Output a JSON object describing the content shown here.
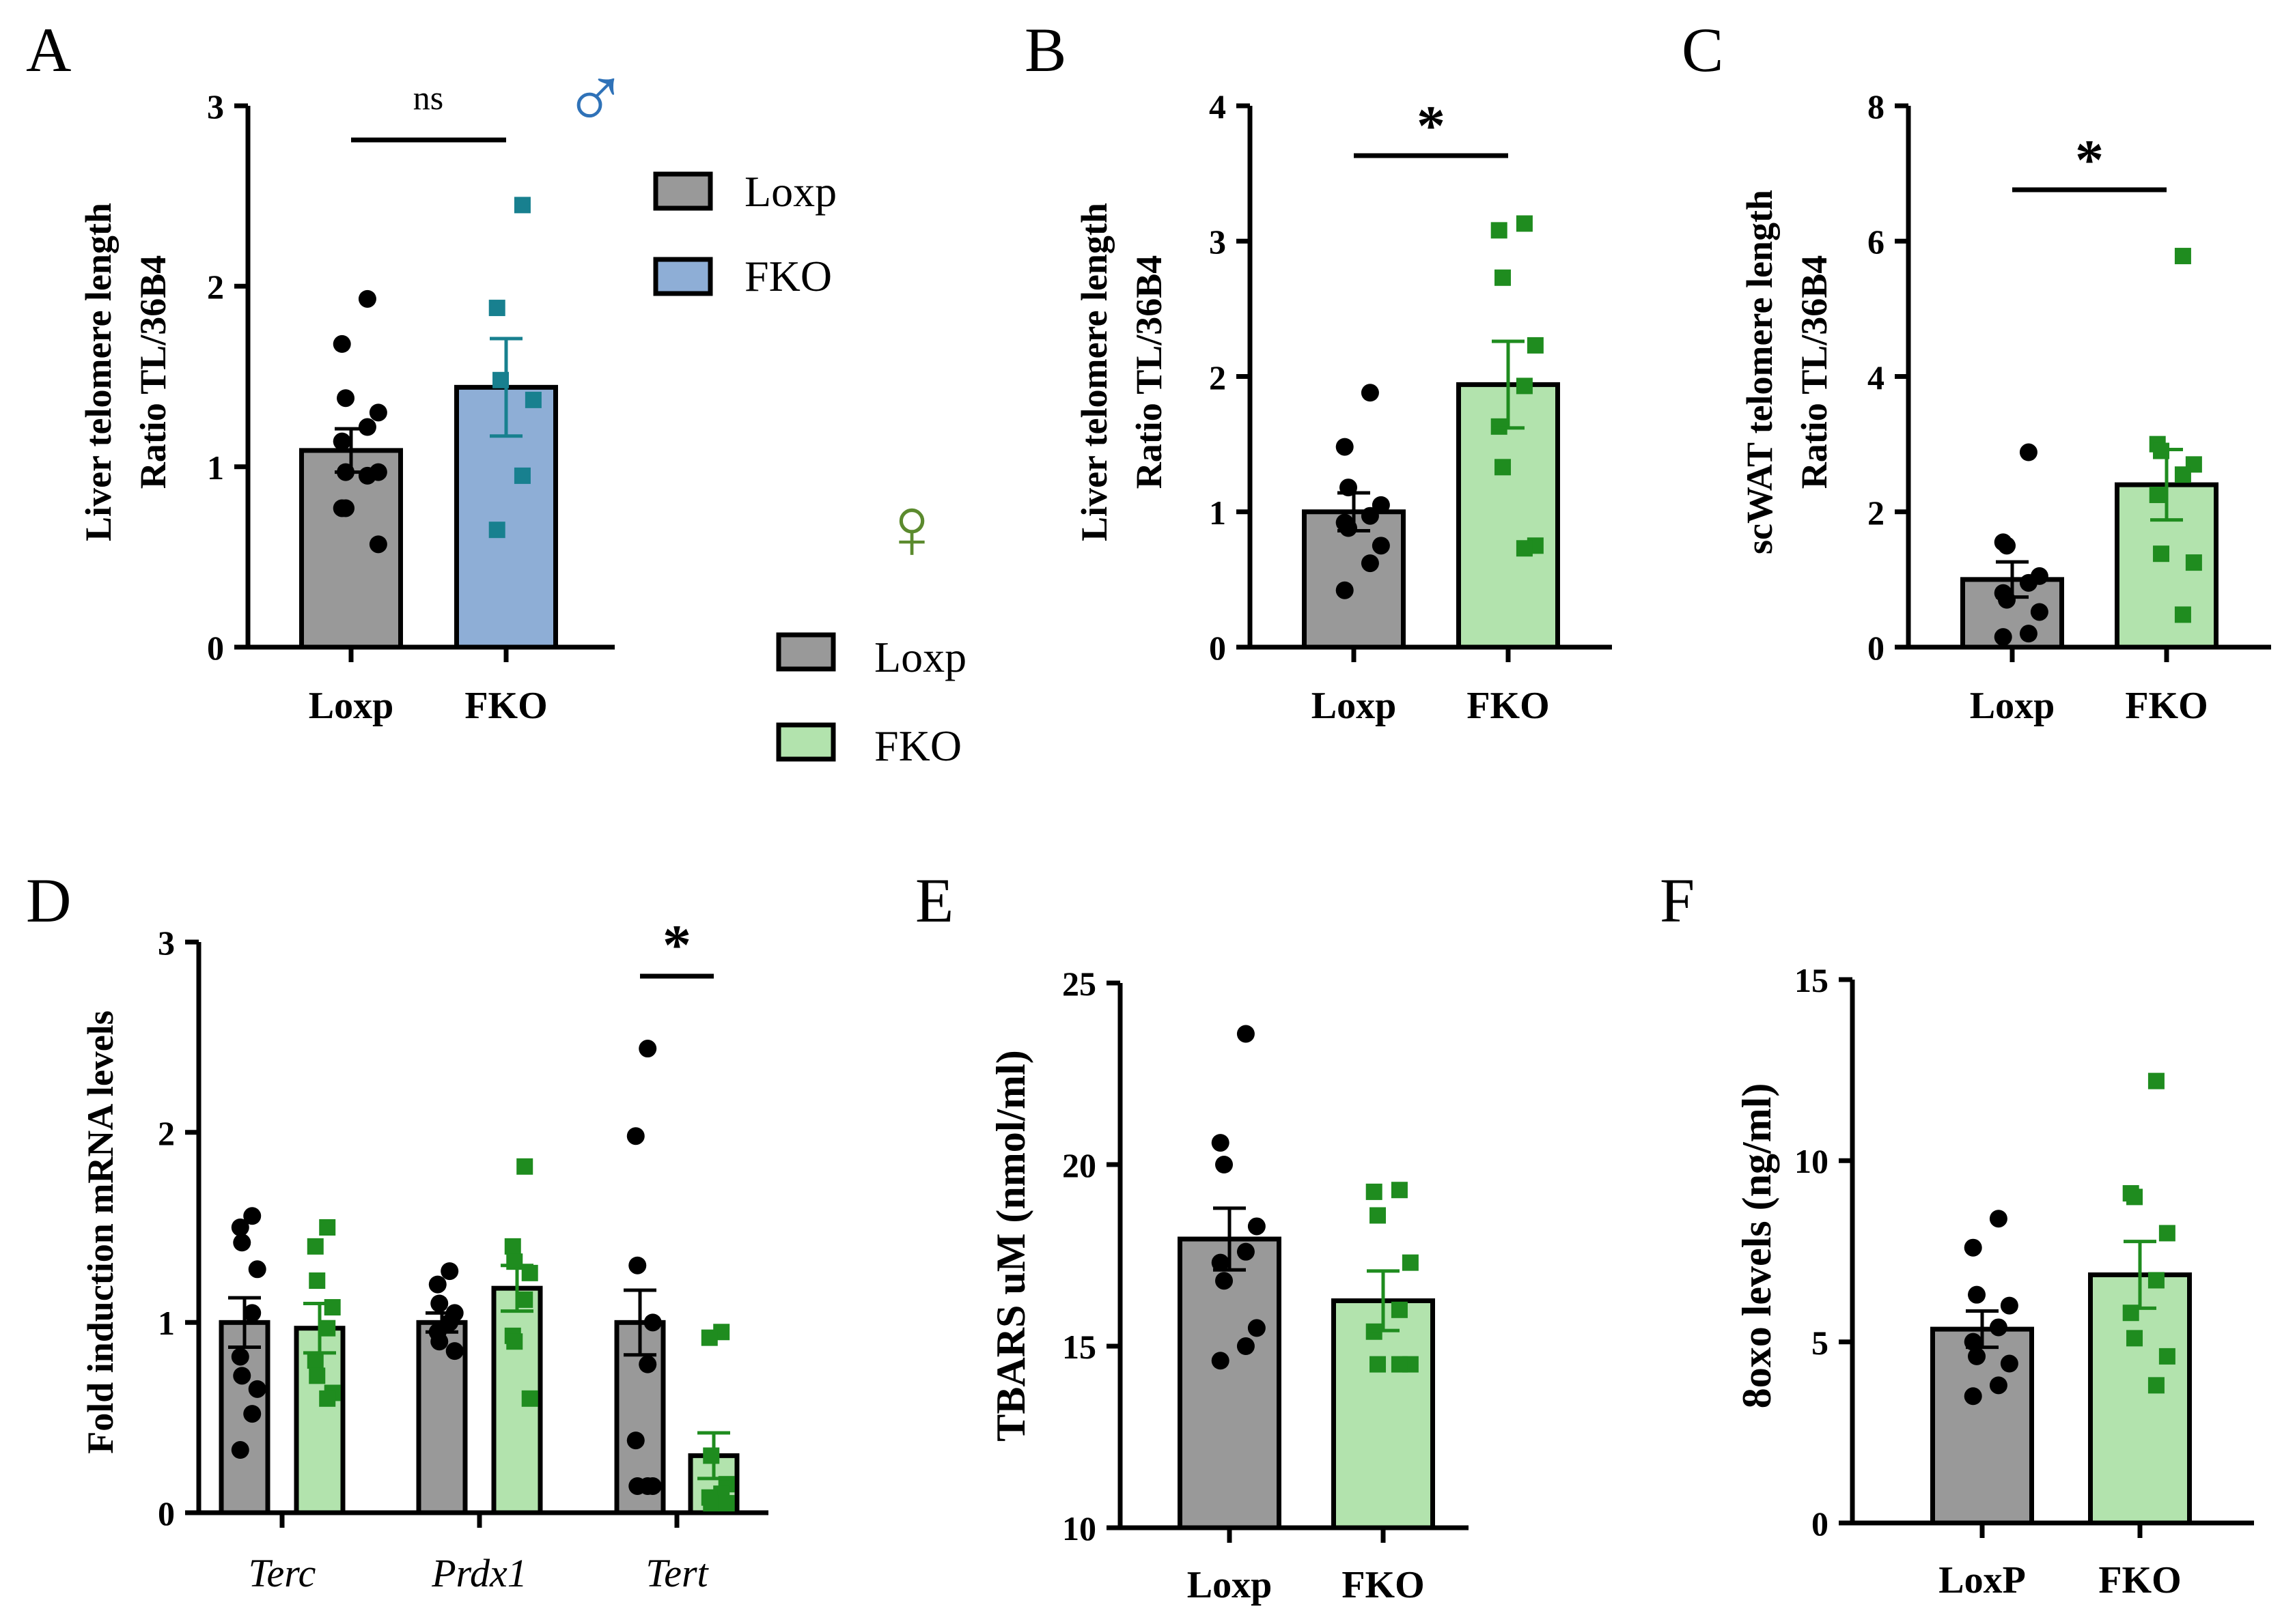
{
  "colors": {
    "loxp_fill": "#999999",
    "fko_male_fill": "#8eaed6",
    "fko_female_fill": "#b2e3ad",
    "male_points": "#18808f",
    "female_points": "#1f8c1f",
    "male_symbol": "#2f72b8",
    "female_symbol": "#5b8a2e"
  },
  "symbols": {
    "male": "♂",
    "female": "♀"
  },
  "legends": [
    {
      "id": "male",
      "items": [
        {
          "label": "Loxp",
          "color_key": "loxp_fill"
        },
        {
          "label": "FKO",
          "color_key": "fko_male_fill"
        }
      ]
    },
    {
      "id": "female",
      "items": [
        {
          "label": "Loxp",
          "color_key": "loxp_fill"
        },
        {
          "label": "FKO",
          "color_key": "fko_female_fill"
        }
      ]
    }
  ],
  "chart_data": [
    {
      "panel": "A",
      "type": "bar",
      "ylabel_lines": [
        "Liver telomere length",
        "Ratio TL/36B4"
      ],
      "ylim": [
        0,
        3
      ],
      "yticks": [
        "0",
        "1",
        "2",
        "3"
      ],
      "categories": [
        "Loxp",
        "FKO"
      ],
      "series": [
        {
          "name": "Loxp",
          "mean": 1.09,
          "sem": 0.12,
          "fill_key": "loxp_fill",
          "point_key": "loxp",
          "points": [
            1.93,
            1.68,
            1.38,
            1.3,
            1.22,
            1.14,
            0.97,
            0.97,
            0.95,
            0.77,
            0.77,
            0.57
          ]
        },
        {
          "name": "FKO",
          "mean": 1.44,
          "sem": 0.27,
          "fill_key": "fko_male_fill",
          "point_key": "male",
          "points": [
            2.45,
            1.88,
            1.48,
            1.37,
            0.95,
            0.65
          ]
        }
      ],
      "significance": "ns"
    },
    {
      "panel": "B",
      "type": "bar",
      "ylabel_lines": [
        "Liver telomere length",
        "Ratio TL/36B4"
      ],
      "ylim": [
        0,
        4
      ],
      "yticks": [
        "0",
        "1",
        "2",
        "3",
        "4"
      ],
      "categories": [
        "Loxp",
        "FKO"
      ],
      "series": [
        {
          "name": "Loxp",
          "mean": 1.0,
          "sem": 0.14,
          "fill_key": "loxp_fill",
          "point_key": "loxp",
          "points": [
            1.88,
            1.48,
            1.18,
            1.05,
            0.97,
            0.92,
            0.88,
            0.75,
            0.62,
            0.42
          ]
        },
        {
          "name": "FKO",
          "mean": 1.94,
          "sem": 0.32,
          "fill_key": "fko_female_fill",
          "point_key": "female",
          "points": [
            3.13,
            3.08,
            2.73,
            2.23,
            1.93,
            1.63,
            1.33,
            0.75,
            0.73
          ]
        }
      ],
      "significance": "*"
    },
    {
      "panel": "C",
      "type": "bar",
      "ylabel_lines": [
        "scWAT telomere length",
        "Ratio TL/36B4"
      ],
      "ylim": [
        0,
        8
      ],
      "yticks": [
        "0",
        "2",
        "4",
        "6",
        "8"
      ],
      "categories": [
        "Loxp",
        "FKO"
      ],
      "series": [
        {
          "name": "Loxp",
          "mean": 1.0,
          "sem": 0.26,
          "fill_key": "loxp_fill",
          "point_key": "loxp",
          "points": [
            2.88,
            1.55,
            1.5,
            1.05,
            0.95,
            0.8,
            0.7,
            0.52,
            0.2,
            0.15
          ]
        },
        {
          "name": "FKO",
          "mean": 2.4,
          "sem": 0.52,
          "fill_key": "fko_female_fill",
          "point_key": "female",
          "points": [
            5.78,
            3.0,
            2.9,
            2.7,
            2.55,
            2.25,
            1.38,
            1.25,
            0.48
          ]
        }
      ],
      "significance": "*"
    },
    {
      "panel": "D",
      "type": "bar",
      "ylabel_lines": [
        "Fold induction mRNA levels"
      ],
      "ylim": [
        0,
        3
      ],
      "yticks": [
        "0",
        "1",
        "2",
        "3"
      ],
      "categories": [
        "Terc",
        "Prdx1",
        "Tert"
      ],
      "series": [
        {
          "name": "Loxp",
          "fill_key": "loxp_fill",
          "point_key": "loxp",
          "means": [
            1.0,
            1.0,
            1.0
          ],
          "sems": [
            0.13,
            0.05,
            0.17
          ],
          "points": [
            [
              1.56,
              1.5,
              1.42,
              1.28,
              1.05,
              0.82,
              0.72,
              0.65,
              0.52,
              0.33
            ],
            [
              1.27,
              1.2,
              1.1,
              1.05,
              1.0,
              0.95,
              0.9,
              0.85
            ],
            [
              2.44,
              1.98,
              1.3,
              1.0,
              0.78,
              0.38,
              0.14,
              0.14,
              0.14
            ]
          ]
        },
        {
          "name": "FKO",
          "fill_key": "fko_female_fill",
          "point_key": "female",
          "means": [
            0.97,
            1.18,
            0.3
          ],
          "sems": [
            0.13,
            0.12,
            0.12
          ],
          "points": [
            [
              1.5,
              1.4,
              1.22,
              1.08,
              0.97,
              0.8,
              0.72,
              0.63,
              0.6
            ],
            [
              1.82,
              1.4,
              1.32,
              1.26,
              1.12,
              0.93,
              0.9,
              0.6
            ],
            [
              0.95,
              0.92,
              0.3,
              0.15,
              0.1,
              0.08,
              0.05,
              0.05
            ]
          ]
        }
      ],
      "significance": [
        {
          "category": "Tert",
          "text": "*"
        }
      ]
    },
    {
      "panel": "E",
      "type": "bar",
      "ylabel_lines": [
        "TBARS uM (nmol/ml)"
      ],
      "ylim": [
        10,
        25
      ],
      "yticks": [
        "10",
        "15",
        "20",
        "25"
      ],
      "categories": [
        "Loxp",
        "FKO"
      ],
      "series": [
        {
          "name": "Loxp",
          "mean": 17.95,
          "sem": 0.85,
          "fill_key": "loxp_fill",
          "point_key": "loxp",
          "points": [
            23.6,
            20.6,
            20.0,
            18.3,
            17.6,
            17.3,
            16.8,
            15.5,
            15.0,
            14.6
          ]
        },
        {
          "name": "FKO",
          "mean": 16.25,
          "sem": 0.82,
          "fill_key": "fko_female_fill",
          "point_key": "female",
          "points": [
            19.3,
            19.25,
            18.6,
            17.3,
            16.0,
            15.4,
            14.5,
            14.5,
            14.5
          ]
        }
      ],
      "significance": null
    },
    {
      "panel": "F",
      "type": "bar",
      "ylabel_lines": [
        "8oxo levels (ng/ml)"
      ],
      "ylim": [
        0,
        15
      ],
      "yticks": [
        "0",
        "5",
        "10",
        "15"
      ],
      "categories": [
        "LoxP",
        "FKO"
      ],
      "series": [
        {
          "name": "LoxP",
          "mean": 5.35,
          "sem": 0.5,
          "fill_key": "loxp_fill",
          "point_key": "loxp",
          "points": [
            8.4,
            7.6,
            6.3,
            6.0,
            5.4,
            5.0,
            4.6,
            4.4,
            3.8,
            3.5
          ]
        },
        {
          "name": "FKO",
          "mean": 6.85,
          "sem": 0.92,
          "fill_key": "fko_female_fill",
          "point_key": "female",
          "points": [
            12.2,
            9.1,
            9.0,
            8.0,
            6.7,
            5.8,
            5.1,
            4.6,
            3.8
          ]
        }
      ],
      "significance": null
    }
  ]
}
